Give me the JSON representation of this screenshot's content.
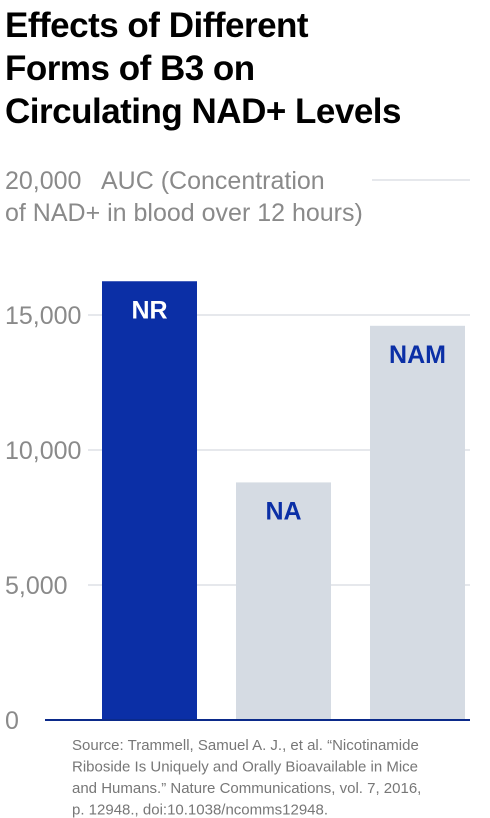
{
  "chart_data": {
    "type": "bar",
    "title": [
      "Effects of Different",
      "Forms of B3 on",
      "Circulating NAD+ Levels"
    ],
    "y_label": [
      "AUC (Concentration",
      "of NAD+ in blood over 12 hours)"
    ],
    "categories": [
      "NR",
      "NA",
      "NAM"
    ],
    "values": [
      16250,
      8800,
      14600
    ],
    "colors": [
      "#0b2fa6",
      "#d5dbe3",
      "#d5dbe3"
    ],
    "label_colors": [
      "#ffffff",
      "#0b2fa6",
      "#0b2fa6"
    ],
    "ylim": [
      0,
      20000
    ],
    "yticks": [
      0,
      {
        "value": 5000,
        "label": "5,000"
      },
      {
        "value": 10000,
        "label": "10,000"
      },
      {
        "value": 15000,
        "label": "15,000"
      },
      {
        "value": 20000,
        "label": "20,000"
      }
    ],
    "grid": true,
    "source": [
      "Source: Trammell, Samuel A. J., et al. “Nicotinamide",
      "Riboside Is Uniquely and Orally Bioavailable in Mice",
      "and Humans.” Nature Communications, vol. 7, 2016,",
      "p. 12948., doi:10.1038/ncomms12948."
    ]
  }
}
